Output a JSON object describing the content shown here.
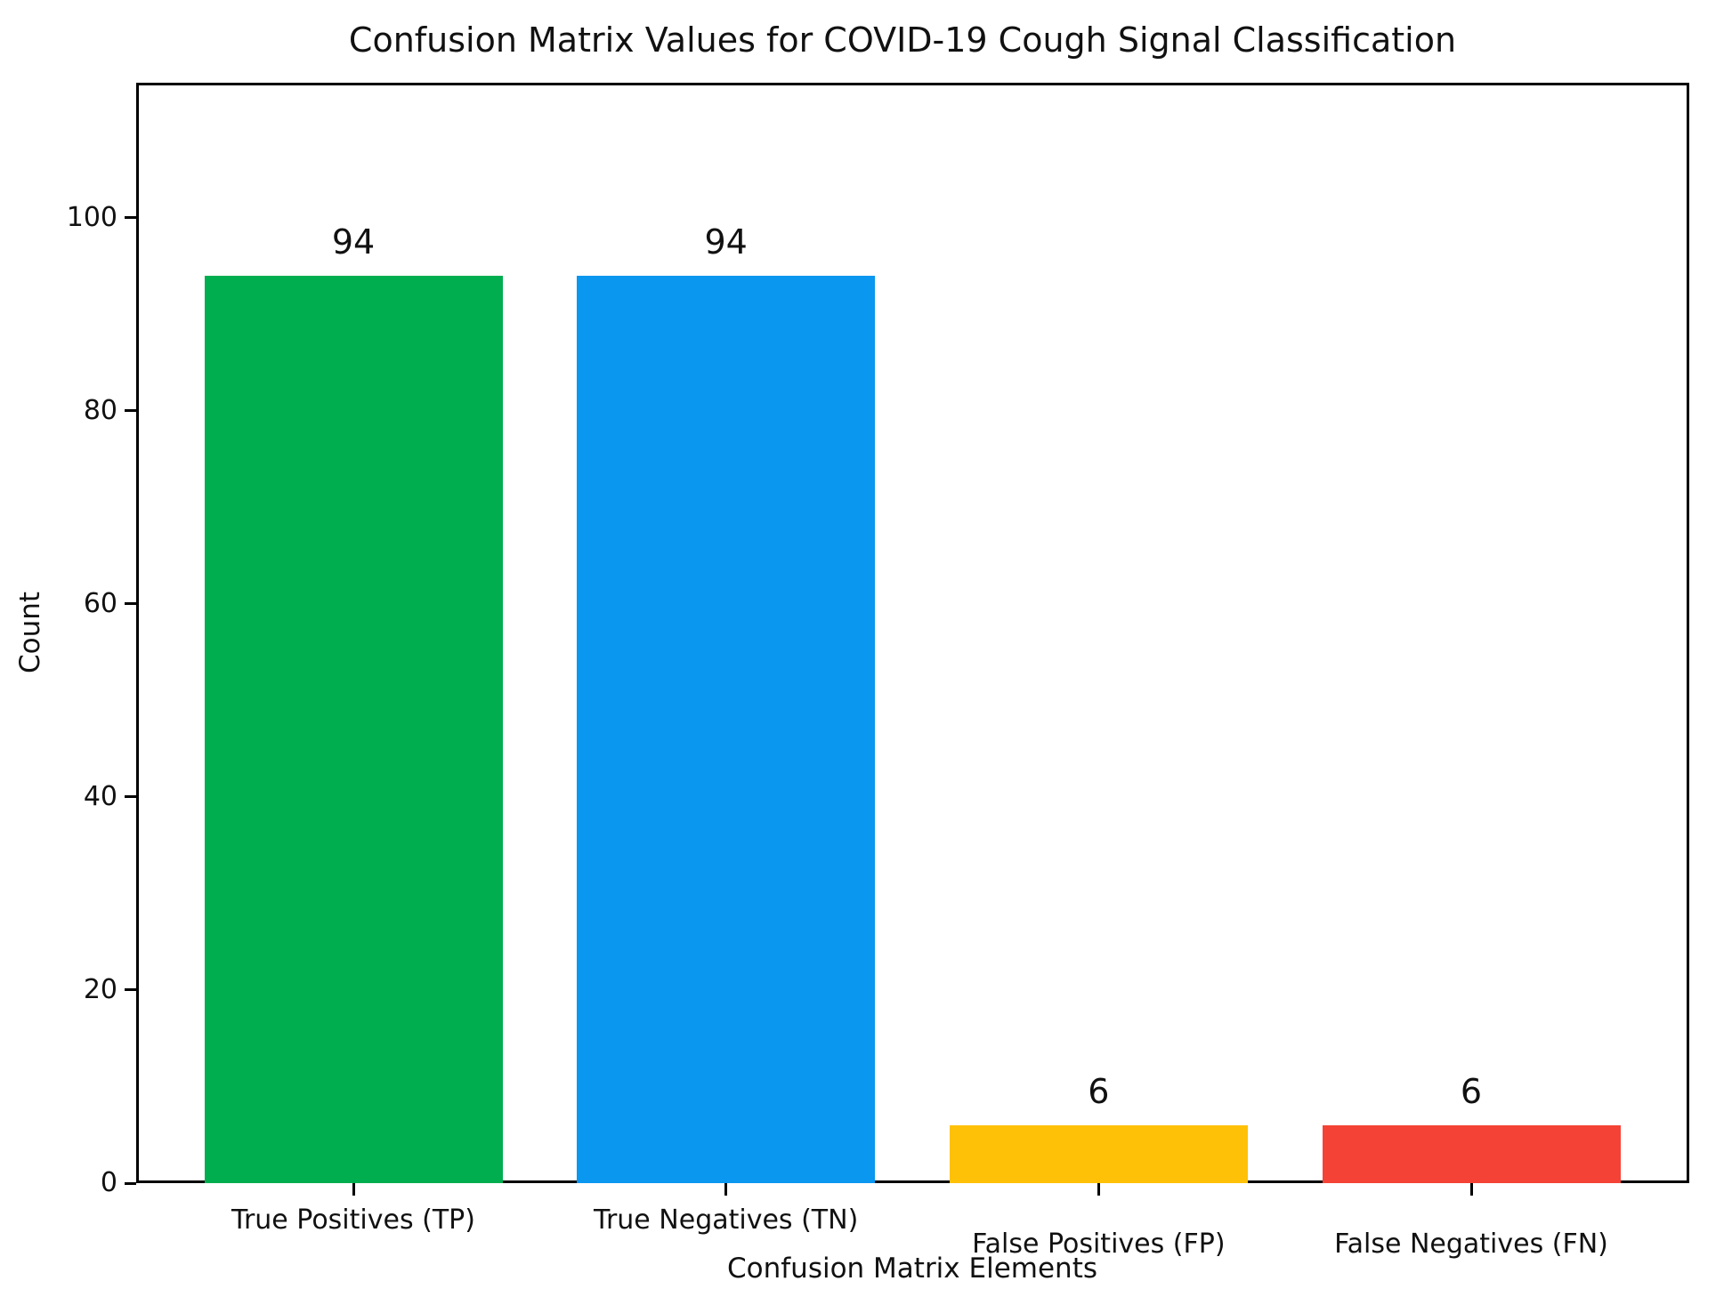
{
  "figure": {
    "background_color": "#ffffff",
    "text_color": "#111111",
    "axis_color": "#000000"
  },
  "chart_data": {
    "type": "bar",
    "title": "Confusion Matrix Values for COVID-19 Cough Signal Classification",
    "xlabel": "Confusion Matrix Elements",
    "ylabel": "Count",
    "categories": [
      "True Positives (TP)",
      "True Negatives (TN)",
      "False Positives (FP)",
      "False Negatives (FN)"
    ],
    "values": [
      94,
      94,
      6,
      6
    ],
    "value_labels": [
      "94",
      "94",
      "6",
      "6"
    ],
    "bar_colors": [
      "#00AE4F",
      "#0997EF",
      "#FFC107",
      "#F44336"
    ],
    "yticks": [
      0,
      20,
      40,
      60,
      80,
      100
    ],
    "ylim": [
      0,
      114
    ],
    "grid": false,
    "legend": "none"
  }
}
